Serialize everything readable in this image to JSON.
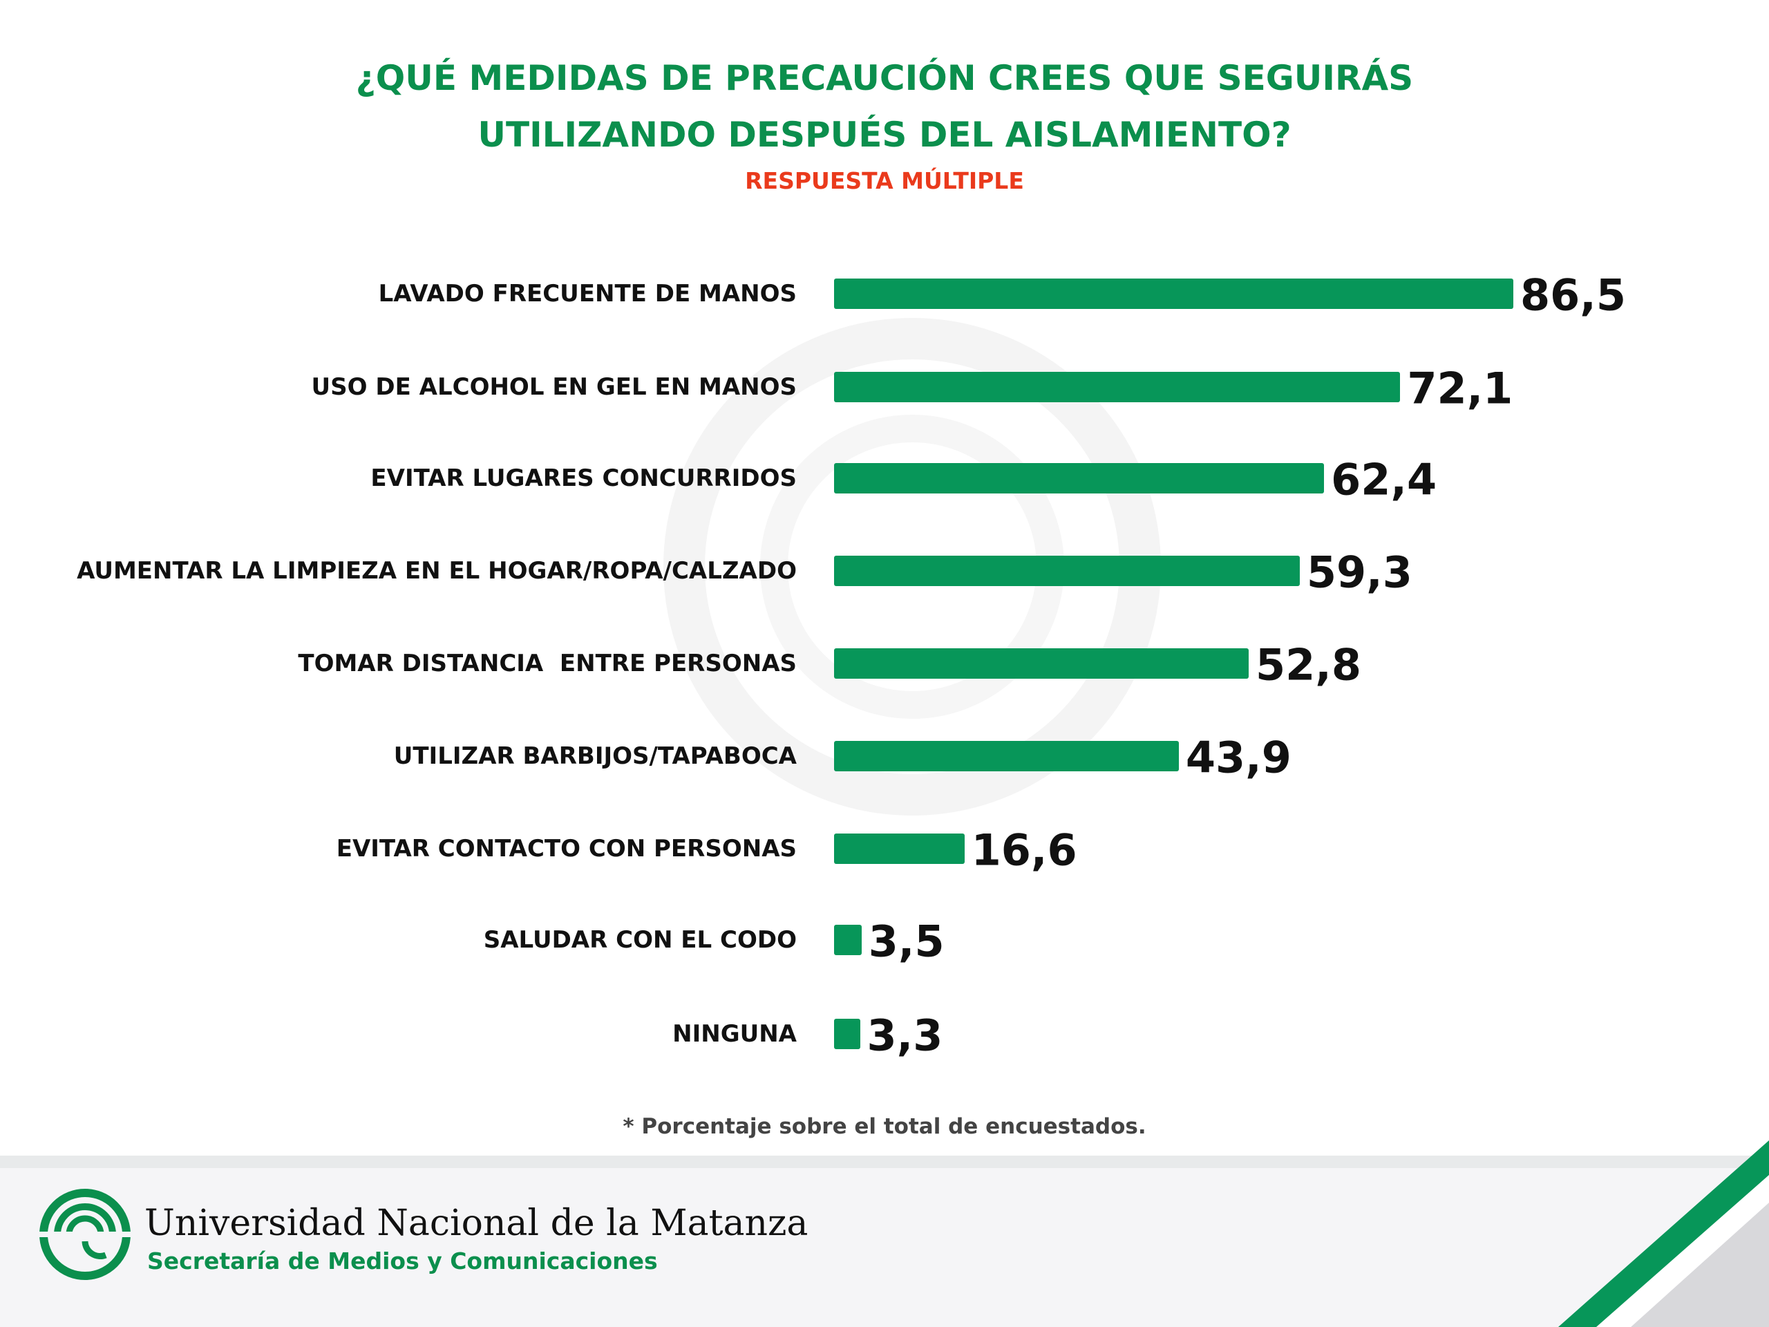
{
  "header": {
    "title_line1": "¿QUÉ MEDIDAS DE PRECAUCIÓN CREES QUE SEGUIRÁS",
    "title_line2": "UTILIZANDO DESPUÉS DEL AISLAMIENTO?",
    "subtitle": "RESPUESTA MÚLTIPLE"
  },
  "chart_data": {
    "type": "bar",
    "orientation": "horizontal",
    "title": "¿QUÉ MEDIDAS DE PRECAUCIÓN CREES QUE SEGUIRÁS UTILIZANDO DESPUÉS DEL AISLAMIENTO?",
    "subtitle": "RESPUESTA MÚLTIPLE",
    "categories": [
      "LAVADO FRECUENTE DE MANOS",
      "USO DE ALCOHOL EN GEL EN MANOS",
      "EVITAR LUGARES CONCURRIDOS",
      "AUMENTAR LA LIMPIEZA EN EL HOGAR/ROPA/CALZADO",
      "TOMAR DISTANCIA  ENTRE PERSONAS",
      "UTILIZAR BARBIJOS/TAPABOCA",
      "EVITAR CONTACTO CON PERSONAS",
      "SALUDAR CON EL CODO",
      "NINGUNA"
    ],
    "values": [
      86.5,
      72.1,
      62.4,
      59.3,
      52.8,
      43.9,
      16.6,
      3.5,
      3.3
    ],
    "value_labels": [
      "86,5",
      "72,1",
      "62,4",
      "59,3",
      "52,8",
      "43,9",
      "16,6",
      "3,5",
      "3,3"
    ],
    "xlim": [
      0,
      100
    ],
    "grid": false,
    "bar_color": "#079659",
    "footnote": "* Porcentaje sobre el total de encuestados."
  },
  "footer": {
    "university": "Universidad Nacional de la Matanza",
    "department": "Secretaría de Medios y Comunicaciones"
  },
  "colors": {
    "title": "#0b8f4d",
    "subtitle": "#ea3a1c",
    "bar": "#079659"
  }
}
